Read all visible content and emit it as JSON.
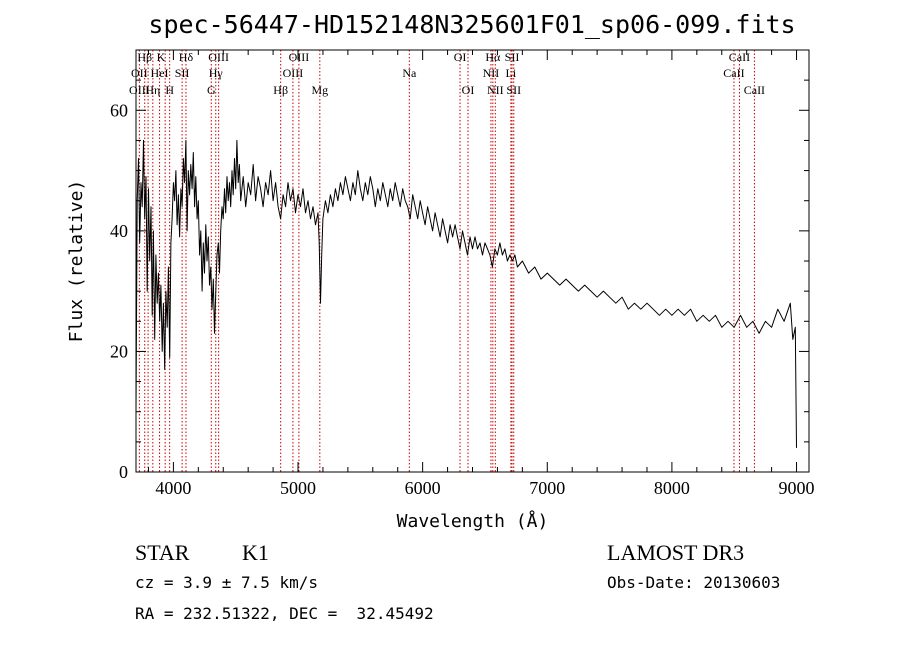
{
  "chart_data": {
    "type": "line",
    "title": "spec-56447-HD152148N325601F01_sp06-099.fits",
    "xlabel": "Wavelength (Å)",
    "ylabel": "Flux (relative)",
    "xlim": [
      3700,
      9100
    ],
    "ylim": [
      0,
      70
    ],
    "xticks": [
      4000,
      5000,
      6000,
      7000,
      8000,
      9000
    ],
    "yticks": [
      0,
      20,
      40,
      60
    ],
    "grid": false,
    "series": [
      {
        "name": "flux",
        "color": "#000000",
        "points": [
          [
            3700,
            10
          ],
          [
            3710,
            45
          ],
          [
            3720,
            52
          ],
          [
            3730,
            38
          ],
          [
            3740,
            48
          ],
          [
            3750,
            44
          ],
          [
            3760,
            55
          ],
          [
            3770,
            42
          ],
          [
            3780,
            49
          ],
          [
            3790,
            30
          ],
          [
            3800,
            47
          ],
          [
            3810,
            35
          ],
          [
            3820,
            44
          ],
          [
            3830,
            26
          ],
          [
            3840,
            40
          ],
          [
            3850,
            22
          ],
          [
            3860,
            36
          ],
          [
            3870,
            28
          ],
          [
            3880,
            33
          ],
          [
            3890,
            25
          ],
          [
            3900,
            31
          ],
          [
            3910,
            20
          ],
          [
            3920,
            28
          ],
          [
            3930,
            17
          ],
          [
            3940,
            30
          ],
          [
            3950,
            24
          ],
          [
            3960,
            34
          ],
          [
            3970,
            19
          ],
          [
            3980,
            38
          ],
          [
            3990,
            42
          ],
          [
            4000,
            48
          ],
          [
            4010,
            45
          ],
          [
            4020,
            50
          ],
          [
            4030,
            41
          ],
          [
            4040,
            46
          ],
          [
            4050,
            39
          ],
          [
            4060,
            47
          ],
          [
            4070,
            44
          ],
          [
            4080,
            52
          ],
          [
            4090,
            48
          ],
          [
            4100,
            55
          ],
          [
            4110,
            40
          ],
          [
            4120,
            50
          ],
          [
            4130,
            46
          ],
          [
            4140,
            51
          ],
          [
            4150,
            47
          ],
          [
            4160,
            53
          ],
          [
            4170,
            44
          ],
          [
            4180,
            49
          ],
          [
            4190,
            42
          ],
          [
            4200,
            45
          ],
          [
            4210,
            36
          ],
          [
            4220,
            40
          ],
          [
            4230,
            30
          ],
          [
            4240,
            38
          ],
          [
            4250,
            33
          ],
          [
            4260,
            41
          ],
          [
            4270,
            35
          ],
          [
            4280,
            39
          ],
          [
            4290,
            31
          ],
          [
            4300,
            34
          ],
          [
            4310,
            27
          ],
          [
            4320,
            32
          ],
          [
            4330,
            23
          ],
          [
            4340,
            30
          ],
          [
            4350,
            36
          ],
          [
            4360,
            38
          ],
          [
            4370,
            33
          ],
          [
            4380,
            40
          ],
          [
            4390,
            44
          ],
          [
            4400,
            42
          ],
          [
            4410,
            47
          ],
          [
            4420,
            43
          ],
          [
            4430,
            49
          ],
          [
            4440,
            45
          ],
          [
            4450,
            48
          ],
          [
            4460,
            44
          ],
          [
            4470,
            50
          ],
          [
            4480,
            46
          ],
          [
            4490,
            52
          ],
          [
            4500,
            47
          ],
          [
            4510,
            55
          ],
          [
            4520,
            48
          ],
          [
            4530,
            51
          ],
          [
            4540,
            45
          ],
          [
            4560,
            49
          ],
          [
            4580,
            44
          ],
          [
            4600,
            48
          ],
          [
            4620,
            46
          ],
          [
            4640,
            51
          ],
          [
            4660,
            45
          ],
          [
            4680,
            49
          ],
          [
            4700,
            47
          ],
          [
            4720,
            44
          ],
          [
            4740,
            48
          ],
          [
            4760,
            46
          ],
          [
            4780,
            50
          ],
          [
            4800,
            45
          ],
          [
            4820,
            48
          ],
          [
            4840,
            44
          ],
          [
            4860,
            42
          ],
          [
            4880,
            46
          ],
          [
            4900,
            44
          ],
          [
            4920,
            48
          ],
          [
            4940,
            45
          ],
          [
            4960,
            47
          ],
          [
            4980,
            43
          ],
          [
            5000,
            46
          ],
          [
            5020,
            44
          ],
          [
            5040,
            47
          ],
          [
            5060,
            43
          ],
          [
            5080,
            45
          ],
          [
            5100,
            42
          ],
          [
            5120,
            44
          ],
          [
            5140,
            41
          ],
          [
            5160,
            43
          ],
          [
            5170,
            38
          ],
          [
            5180,
            28
          ],
          [
            5190,
            36
          ],
          [
            5200,
            42
          ],
          [
            5220,
            45
          ],
          [
            5240,
            43
          ],
          [
            5260,
            46
          ],
          [
            5280,
            44
          ],
          [
            5300,
            47
          ],
          [
            5320,
            45
          ],
          [
            5340,
            48
          ],
          [
            5360,
            46
          ],
          [
            5380,
            49
          ],
          [
            5400,
            47
          ],
          [
            5420,
            45
          ],
          [
            5440,
            48
          ],
          [
            5460,
            46
          ],
          [
            5480,
            50
          ],
          [
            5500,
            47
          ],
          [
            5520,
            45
          ],
          [
            5540,
            48
          ],
          [
            5560,
            46
          ],
          [
            5580,
            49
          ],
          [
            5600,
            47
          ],
          [
            5620,
            44
          ],
          [
            5640,
            47
          ],
          [
            5660,
            45
          ],
          [
            5680,
            48
          ],
          [
            5700,
            46
          ],
          [
            5720,
            44
          ],
          [
            5740,
            47
          ],
          [
            5760,
            45
          ],
          [
            5780,
            48
          ],
          [
            5800,
            46
          ],
          [
            5820,
            44
          ],
          [
            5840,
            47
          ],
          [
            5860,
            45
          ],
          [
            5880,
            44
          ],
          [
            5900,
            42
          ],
          [
            5920,
            46
          ],
          [
            5940,
            44
          ],
          [
            5960,
            42
          ],
          [
            5980,
            45
          ],
          [
            6000,
            43
          ],
          [
            6020,
            41
          ],
          [
            6040,
            44
          ],
          [
            6060,
            42
          ],
          [
            6080,
            40
          ],
          [
            6100,
            43
          ],
          [
            6120,
            41
          ],
          [
            6140,
            39
          ],
          [
            6160,
            42
          ],
          [
            6180,
            40
          ],
          [
            6200,
            38
          ],
          [
            6220,
            41
          ],
          [
            6240,
            39
          ],
          [
            6260,
            41
          ],
          [
            6280,
            39
          ],
          [
            6300,
            37
          ],
          [
            6320,
            40
          ],
          [
            6340,
            38
          ],
          [
            6360,
            36
          ],
          [
            6380,
            39
          ],
          [
            6400,
            37
          ],
          [
            6420,
            39
          ],
          [
            6440,
            37
          ],
          [
            6460,
            38
          ],
          [
            6480,
            36
          ],
          [
            6500,
            38
          ],
          [
            6520,
            37
          ],
          [
            6540,
            36
          ],
          [
            6560,
            34
          ],
          [
            6580,
            37
          ],
          [
            6600,
            36
          ],
          [
            6620,
            38
          ],
          [
            6640,
            36
          ],
          [
            6660,
            37
          ],
          [
            6680,
            35
          ],
          [
            6700,
            36
          ],
          [
            6720,
            35
          ],
          [
            6740,
            36
          ],
          [
            6760,
            34
          ],
          [
            6800,
            35
          ],
          [
            6850,
            33
          ],
          [
            6900,
            34
          ],
          [
            6950,
            32
          ],
          [
            7000,
            33
          ],
          [
            7050,
            32
          ],
          [
            7100,
            31
          ],
          [
            7150,
            32
          ],
          [
            7200,
            31
          ],
          [
            7250,
            30
          ],
          [
            7300,
            31
          ],
          [
            7350,
            30
          ],
          [
            7400,
            29
          ],
          [
            7450,
            30
          ],
          [
            7500,
            29
          ],
          [
            7550,
            28
          ],
          [
            7600,
            29
          ],
          [
            7650,
            27
          ],
          [
            7700,
            28
          ],
          [
            7750,
            27
          ],
          [
            7800,
            28
          ],
          [
            7850,
            27
          ],
          [
            7900,
            26
          ],
          [
            7950,
            27
          ],
          [
            8000,
            26
          ],
          [
            8050,
            27
          ],
          [
            8100,
            26
          ],
          [
            8150,
            27
          ],
          [
            8200,
            25
          ],
          [
            8250,
            26
          ],
          [
            8300,
            25
          ],
          [
            8350,
            26
          ],
          [
            8400,
            24
          ],
          [
            8450,
            25
          ],
          [
            8500,
            24
          ],
          [
            8550,
            26
          ],
          [
            8600,
            24
          ],
          [
            8650,
            25
          ],
          [
            8700,
            23
          ],
          [
            8750,
            25
          ],
          [
            8800,
            24
          ],
          [
            8850,
            27
          ],
          [
            8900,
            25
          ],
          [
            8950,
            28
          ],
          [
            8970,
            22
          ],
          [
            8990,
            24
          ],
          [
            9000,
            4
          ]
        ]
      }
    ],
    "line_labels": [
      {
        "text": "Hβ",
        "x": 3770,
        "row": 1
      },
      {
        "text": "K",
        "x": 3900,
        "row": 1
      },
      {
        "text": "Hδ",
        "x": 4101,
        "row": 1
      },
      {
        "text": "OIII",
        "x": 4363,
        "row": 1
      },
      {
        "text": "OIII",
        "x": 5007,
        "row": 1
      },
      {
        "text": "OI",
        "x": 6300,
        "row": 1
      },
      {
        "text": "Hα",
        "x": 6563,
        "row": 1
      },
      {
        "text": "SII",
        "x": 6717,
        "row": 1
      },
      {
        "text": "CaII",
        "x": 8542,
        "row": 1
      },
      {
        "text": "OII",
        "x": 3727,
        "row": 2
      },
      {
        "text": "HeI",
        "x": 3889,
        "row": 2
      },
      {
        "text": "SII",
        "x": 4070,
        "row": 2
      },
      {
        "text": "Hγ",
        "x": 4340,
        "row": 2
      },
      {
        "text": "OIII",
        "x": 4959,
        "row": 2
      },
      {
        "text": "Na",
        "x": 5893,
        "row": 2
      },
      {
        "text": "NII",
        "x": 6548,
        "row": 2
      },
      {
        "text": "Li",
        "x": 6708,
        "row": 2
      },
      {
        "text": "CaII",
        "x": 8498,
        "row": 2
      },
      {
        "text": "OIII",
        "x": 3727,
        "row": 3
      },
      {
        "text": "Hη",
        "x": 3835,
        "row": 3
      },
      {
        "text": "H",
        "x": 3970,
        "row": 3
      },
      {
        "text": "G",
        "x": 4304,
        "row": 3
      },
      {
        "text": "Hβ",
        "x": 4861,
        "row": 3
      },
      {
        "text": "Mg",
        "x": 5175,
        "row": 3
      },
      {
        "text": "OI",
        "x": 6364,
        "row": 3
      },
      {
        "text": "NII",
        "x": 6583,
        "row": 3
      },
      {
        "text": "SII",
        "x": 6731,
        "row": 3
      },
      {
        "text": "CaII",
        "x": 8662,
        "row": 3
      }
    ],
    "line_positions": [
      3727,
      3770,
      3797,
      3835,
      3889,
      3934,
      3970,
      4070,
      4101,
      4304,
      4340,
      4363,
      4861,
      4959,
      5007,
      5175,
      5893,
      6300,
      6364,
      6548,
      6563,
      6583,
      6708,
      6717,
      6731,
      8498,
      8542,
      8662
    ],
    "line_color": "#cc0000"
  },
  "info": {
    "class_label": "STAR",
    "subclass": "K1",
    "redshift": "cz = 3.9 ± 7.5 km/s",
    "coords": "RA = 232.51322, DEC =  32.45492",
    "survey": "LAMOST DR3",
    "obs_date": "Obs-Date: 20130603"
  }
}
